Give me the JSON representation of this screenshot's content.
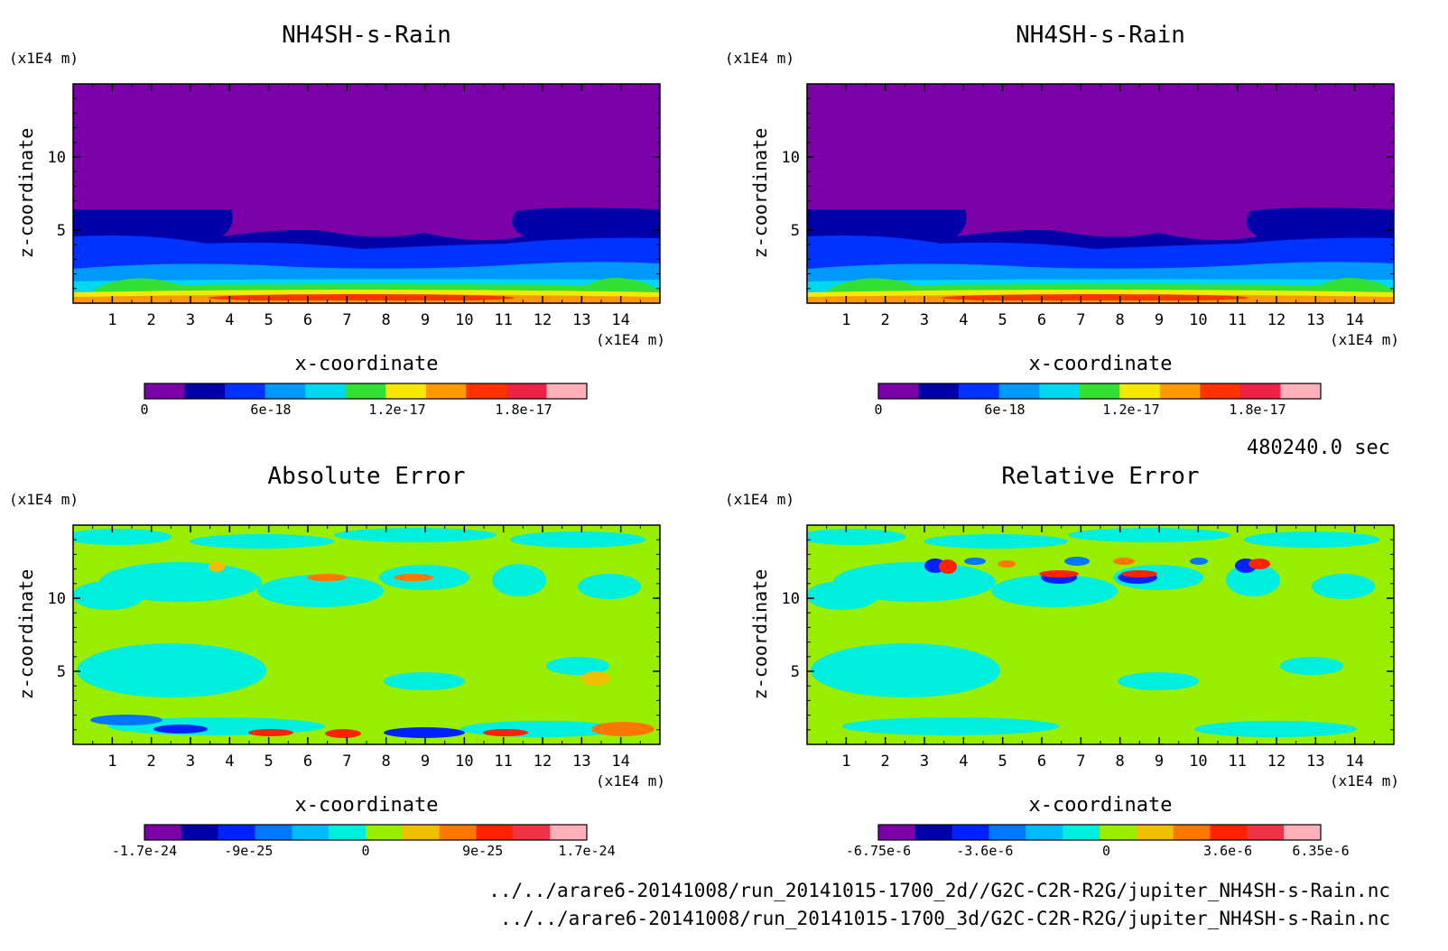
{
  "chart_data": [
    {
      "type": "heatmap",
      "title": "NH4SH-s-Rain",
      "xlabel": "x-coordinate",
      "ylabel": "z-coordinate",
      "x_unit": "(x1E4 m)",
      "y_unit": "(x1E4 m)",
      "xlim": [
        0,
        15
      ],
      "ylim": [
        0,
        15
      ],
      "x_ticks": [
        1,
        2,
        3,
        4,
        5,
        6,
        7,
        8,
        9,
        10,
        11,
        12,
        13,
        14
      ],
      "y_ticks": [
        5,
        10
      ],
      "colorbar": {
        "vmin": 0,
        "vmax": 2.1e-17,
        "levels": 11,
        "tick_values": [
          0,
          6e-18,
          1.2e-17,
          1.8e-17
        ],
        "tick_labels": [
          "0",
          "6e-18",
          "1.2e-17",
          "1.8e-17"
        ]
      },
      "field": "stratified: high values near z<1, decreasing to purple above z~4-6 with two upward lobes near x=1-3 and x=11-14"
    },
    {
      "type": "heatmap",
      "title": "NH4SH-s-Rain",
      "xlabel": "x-coordinate",
      "ylabel": "z-coordinate",
      "x_unit": "(x1E4 m)",
      "y_unit": "(x1E4 m)",
      "xlim": [
        0,
        15
      ],
      "ylim": [
        0,
        15
      ],
      "x_ticks": [
        1,
        2,
        3,
        4,
        5,
        6,
        7,
        8,
        9,
        10,
        11,
        12,
        13,
        14
      ],
      "y_ticks": [
        5,
        10
      ],
      "colorbar": {
        "vmin": 0,
        "vmax": 2.1e-17,
        "levels": 11,
        "tick_values": [
          0,
          6e-18,
          1.2e-17,
          1.8e-17
        ],
        "tick_labels": [
          "0",
          "6e-18",
          "1.2e-17",
          "1.8e-17"
        ]
      },
      "field": "same as left panel"
    },
    {
      "type": "heatmap",
      "title": "Absolute Error",
      "xlabel": "x-coordinate",
      "ylabel": "z-coordinate",
      "x_unit": "(x1E4 m)",
      "y_unit": "(x1E4 m)",
      "xlim": [
        0,
        15
      ],
      "ylim": [
        0,
        15
      ],
      "x_ticks": [
        1,
        2,
        3,
        4,
        5,
        6,
        7,
        8,
        9,
        10,
        11,
        12,
        13,
        14
      ],
      "y_ticks": [
        5,
        10
      ],
      "colorbar": {
        "vmin": -1.7e-24,
        "vmax": 1.7e-24,
        "levels": 11,
        "tick_values": [
          -1.7e-24,
          -9e-25,
          0,
          9e-25,
          1.7e-24
        ],
        "tick_labels": [
          "-1.7e-24",
          "-9e-25",
          "0",
          "9e-25",
          "1.7e-24"
        ]
      },
      "field": "mostly ~0 with cyan patches; blue/red speckles near z<1"
    },
    {
      "type": "heatmap",
      "title": "Relative Error",
      "xlabel": "x-coordinate",
      "ylabel": "z-coordinate",
      "x_unit": "(x1E4 m)",
      "y_unit": "(x1E4 m)",
      "xlim": [
        0,
        15
      ],
      "ylim": [
        0,
        15
      ],
      "x_ticks": [
        1,
        2,
        3,
        4,
        5,
        6,
        7,
        8,
        9,
        10,
        11,
        12,
        13,
        14
      ],
      "y_ticks": [
        5,
        10
      ],
      "colorbar": {
        "vmin": -6.75e-06,
        "vmax": 6.35e-06,
        "levels": 11,
        "tick_values": [
          -6.75e-06,
          -3.6e-06,
          0,
          3.6e-06,
          6.35e-06
        ],
        "tick_labels": [
          "-6.75e-6",
          "-3.6e-6",
          "0",
          "3.6e-6",
          "6.35e-6"
        ]
      },
      "field": "mostly ~0 with cyan patches; strong +/- dipoles near z~11-12"
    }
  ],
  "colors": {
    "seq": [
      "#7b00a8",
      "#0000a8",
      "#0033ff",
      "#0099ff",
      "#00d8f0",
      "#33e033",
      "#f8e800",
      "#ff9900",
      "#ff3300",
      "#ee2244",
      "#ffb0b8"
    ],
    "div": [
      "#7b00a8",
      "#0000a8",
      "#0022ff",
      "#0077ff",
      "#00bbff",
      "#00eedd",
      "#99ee00",
      "#f0c000",
      "#ff7700",
      "#ff2200",
      "#ee3344",
      "#ffb0b8"
    ]
  },
  "time_label": "480240.0 sec",
  "file_paths": [
    "../../arare6-20141008/run_20141015-1700_2d//G2C-C2R-R2G/jupiter_NH4SH-s-Rain.nc",
    "../../arare6-20141008/run_20141015-1700_3d/G2C-C2R-R2G/jupiter_NH4SH-s-Rain.nc"
  ]
}
